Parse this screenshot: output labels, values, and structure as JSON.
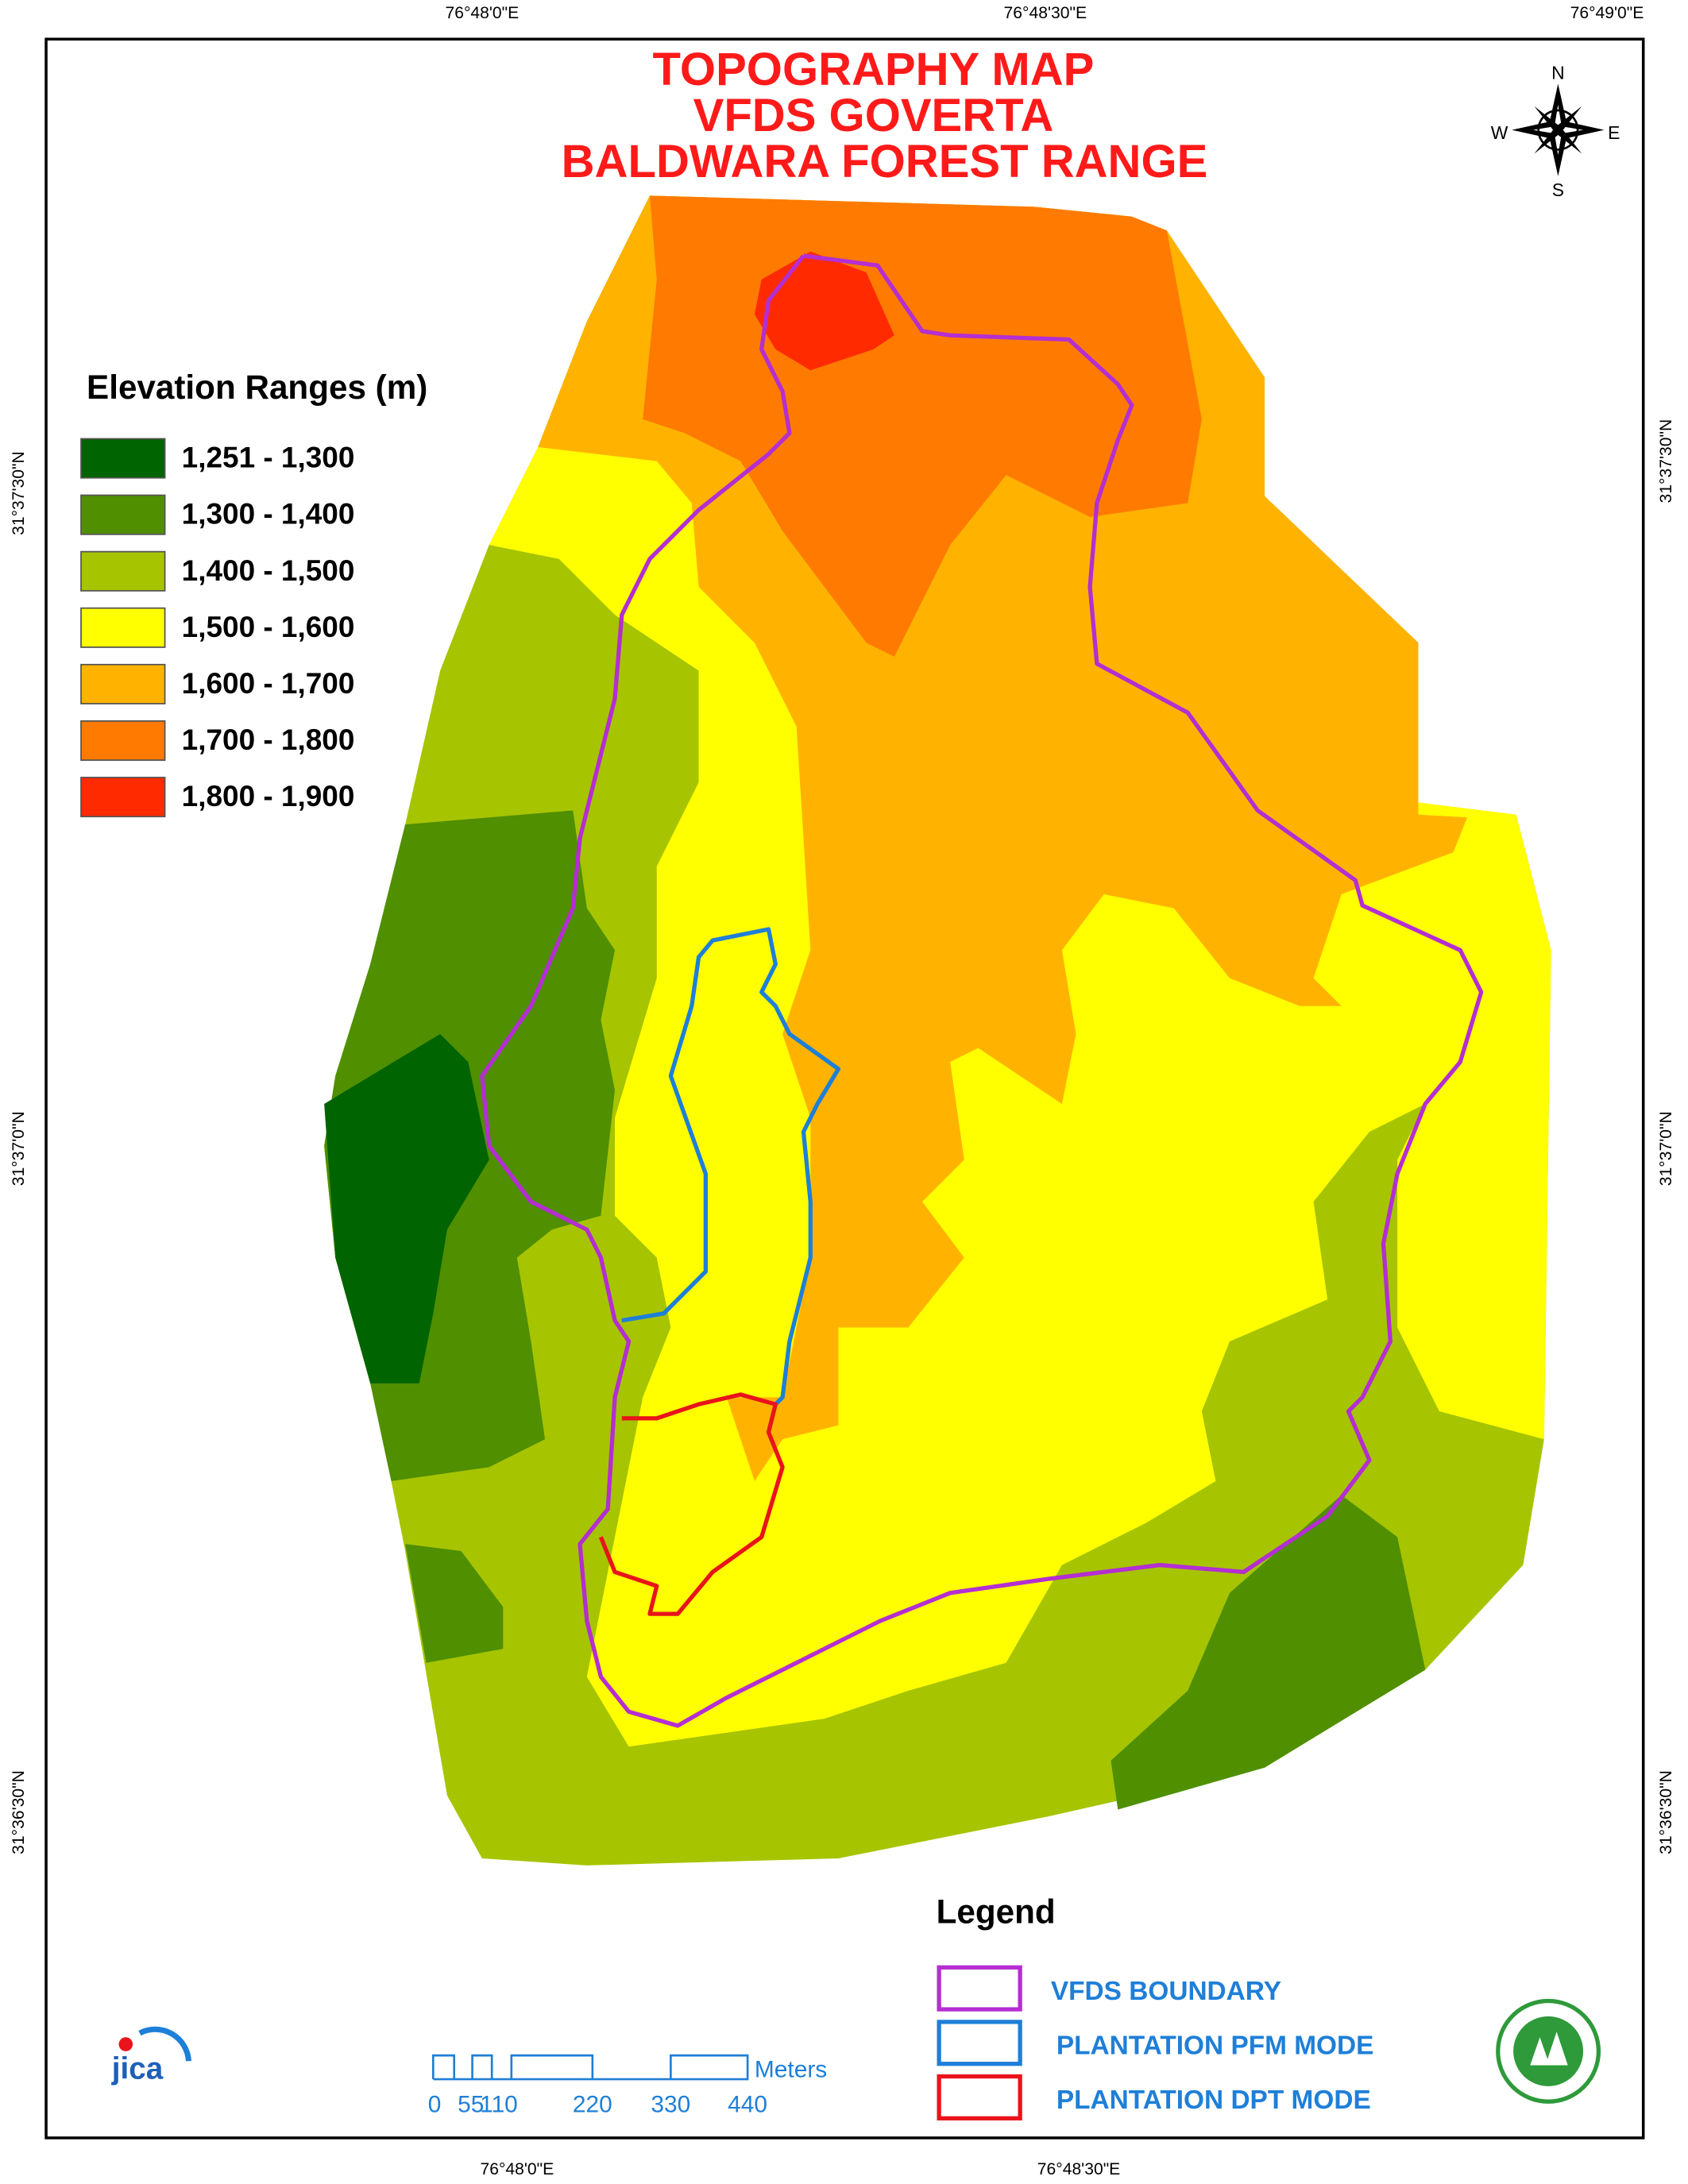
{
  "title": [
    "TOPOGRAPHY MAP",
    "VFDS GOVERTA",
    "BALDWARA FOREST RANGE"
  ],
  "top_coords": [
    "76°48'0\"E",
    "76°48'30\"E",
    "76°49'0\"E"
  ],
  "bottom_coords": [
    "76°48'0\"E",
    "76°48'30\"E"
  ],
  "left_coords": [
    "31°37'30\"N",
    "31°37'0\"N",
    "31°36'30\"N"
  ],
  "right_coords": [
    "31°37'30\"N",
    "31°37'0\"N",
    "31°36'30\"N"
  ],
  "elevation_legend": {
    "title": "Elevation Ranges (m)",
    "items": [
      {
        "label": "1,251 - 1,300",
        "color": "#006400"
      },
      {
        "label": "1,300 - 1,400",
        "color": "#4f8f00"
      },
      {
        "label": "1,400 - 1,500",
        "color": "#a6c400"
      },
      {
        "label": "1,500 - 1,600",
        "color": "#ffff00"
      },
      {
        "label": "1,600 - 1,700",
        "color": "#ffb300"
      },
      {
        "label": "1,700 - 1,800",
        "color": "#ff7a00"
      },
      {
        "label": "1,800 - 1,900",
        "color": "#ff2a00"
      }
    ]
  },
  "legend": {
    "title": "Legend",
    "items": [
      {
        "label": "VFDS BOUNDARY",
        "color": "#b42ed2"
      },
      {
        "label": "PLANTATION PFM MODE",
        "color": "#1e7fd8"
      },
      {
        "label": "PLANTATION DPT MODE",
        "color": "#e8141a"
      }
    ]
  },
  "scale_bar": {
    "labels": [
      "0",
      "55",
      "110",
      "220",
      "330",
      "440"
    ],
    "unit": "Meters"
  },
  "compass": {
    "north": "N",
    "south": "S",
    "east": "E",
    "west": "W"
  },
  "logo_text": "jica"
}
